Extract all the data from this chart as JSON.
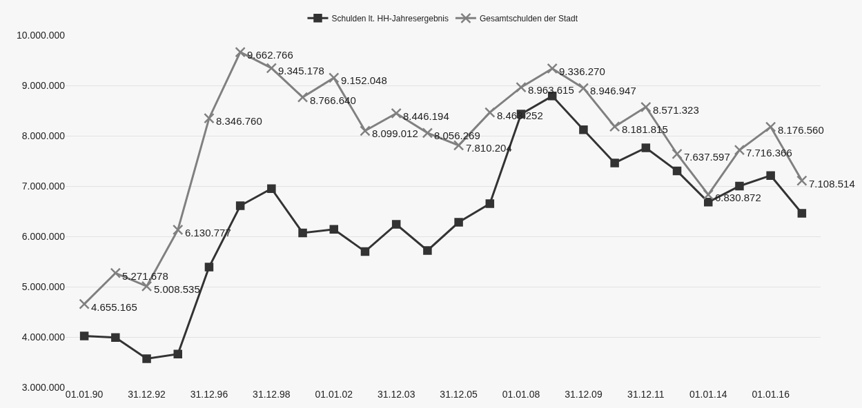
{
  "chart_data": {
    "type": "line",
    "categories": [
      "01.01.90",
      null,
      "31.12.92",
      null,
      "31.12.96",
      null,
      "31.12.98",
      null,
      "01.01.02",
      null,
      "31.12.03",
      null,
      "31.12.05",
      null,
      "01.01.08",
      null,
      "31.12.09",
      null,
      "31.12.11",
      null,
      "01.01.14",
      null,
      "01.01.16",
      null
    ],
    "series": [
      {
        "name": "Schulden lt. HH-Jahresergebnis",
        "color": "#333333",
        "marker": "square",
        "values": [
          4020000,
          3990000,
          3570000,
          3660000,
          5390000,
          6610000,
          6950000,
          6070000,
          6140000,
          5700000,
          6240000,
          5720000,
          6280000,
          6650000,
          8430000,
          8790000,
          8120000,
          7460000,
          7760000,
          7300000,
          6680000,
          7000000,
          7210000,
          6460000
        ]
      },
      {
        "name": "Gesamtschulden der Stadt",
        "color": "#808080",
        "marker": "cross",
        "values": [
          4655165,
          5271678,
          5008535,
          6130777,
          8346760,
          9662766,
          9345178,
          8766640,
          9152048,
          8099012,
          8446194,
          8056269,
          7810204,
          8463252,
          8963615,
          9336270,
          8946947,
          8181815,
          8571323,
          7637597,
          6830872,
          7716366,
          8176560,
          7108514
        ],
        "value_labels": [
          "4.655.165",
          "5.271.678",
          "5.008.535",
          "6.130.777",
          "8.346.760",
          "9.662.766",
          "9.345.178",
          "8.766.640",
          "9.152.048",
          "8.099.012",
          "8.446.194",
          "8.056.269",
          "7.810.204",
          "8.463.252",
          "8.963.615",
          "9.336.270",
          "8.946.947",
          "8.181.815",
          "8.571.323",
          "7.637.597",
          "6.830.872",
          "7.716.366",
          "8.176.560",
          "7.108.514"
        ]
      }
    ],
    "ylim": [
      3000000,
      10000000
    ],
    "yticks": [
      {
        "value": 3000000,
        "label": "3.000.000"
      },
      {
        "value": 4000000,
        "label": "4.000.000"
      },
      {
        "value": 5000000,
        "label": "5.000.000"
      },
      {
        "value": 6000000,
        "label": "6.000.000"
      },
      {
        "value": 7000000,
        "label": "7.000.000"
      },
      {
        "value": 8000000,
        "label": "8.000.000"
      },
      {
        "value": 9000000,
        "label": "9.000.000"
      },
      {
        "value": 10000000,
        "label": "10.000.000"
      }
    ],
    "grid": "y",
    "legend": "top",
    "line_style": "solid"
  }
}
